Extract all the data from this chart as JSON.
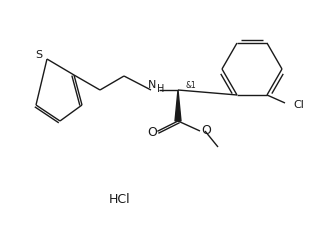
{
  "background_color": "#ffffff",
  "line_color": "#1a1a1a",
  "text_color": "#1a1a1a",
  "hcl_label": "HCl",
  "stereo_label": "&1",
  "nh_label": "H",
  "cl_label": "Cl",
  "s_label": "S",
  "o_label": "O",
  "o2_label": "O",
  "n_label": "N",
  "fig_width": 3.15,
  "fig_height": 2.28,
  "dpi": 100
}
